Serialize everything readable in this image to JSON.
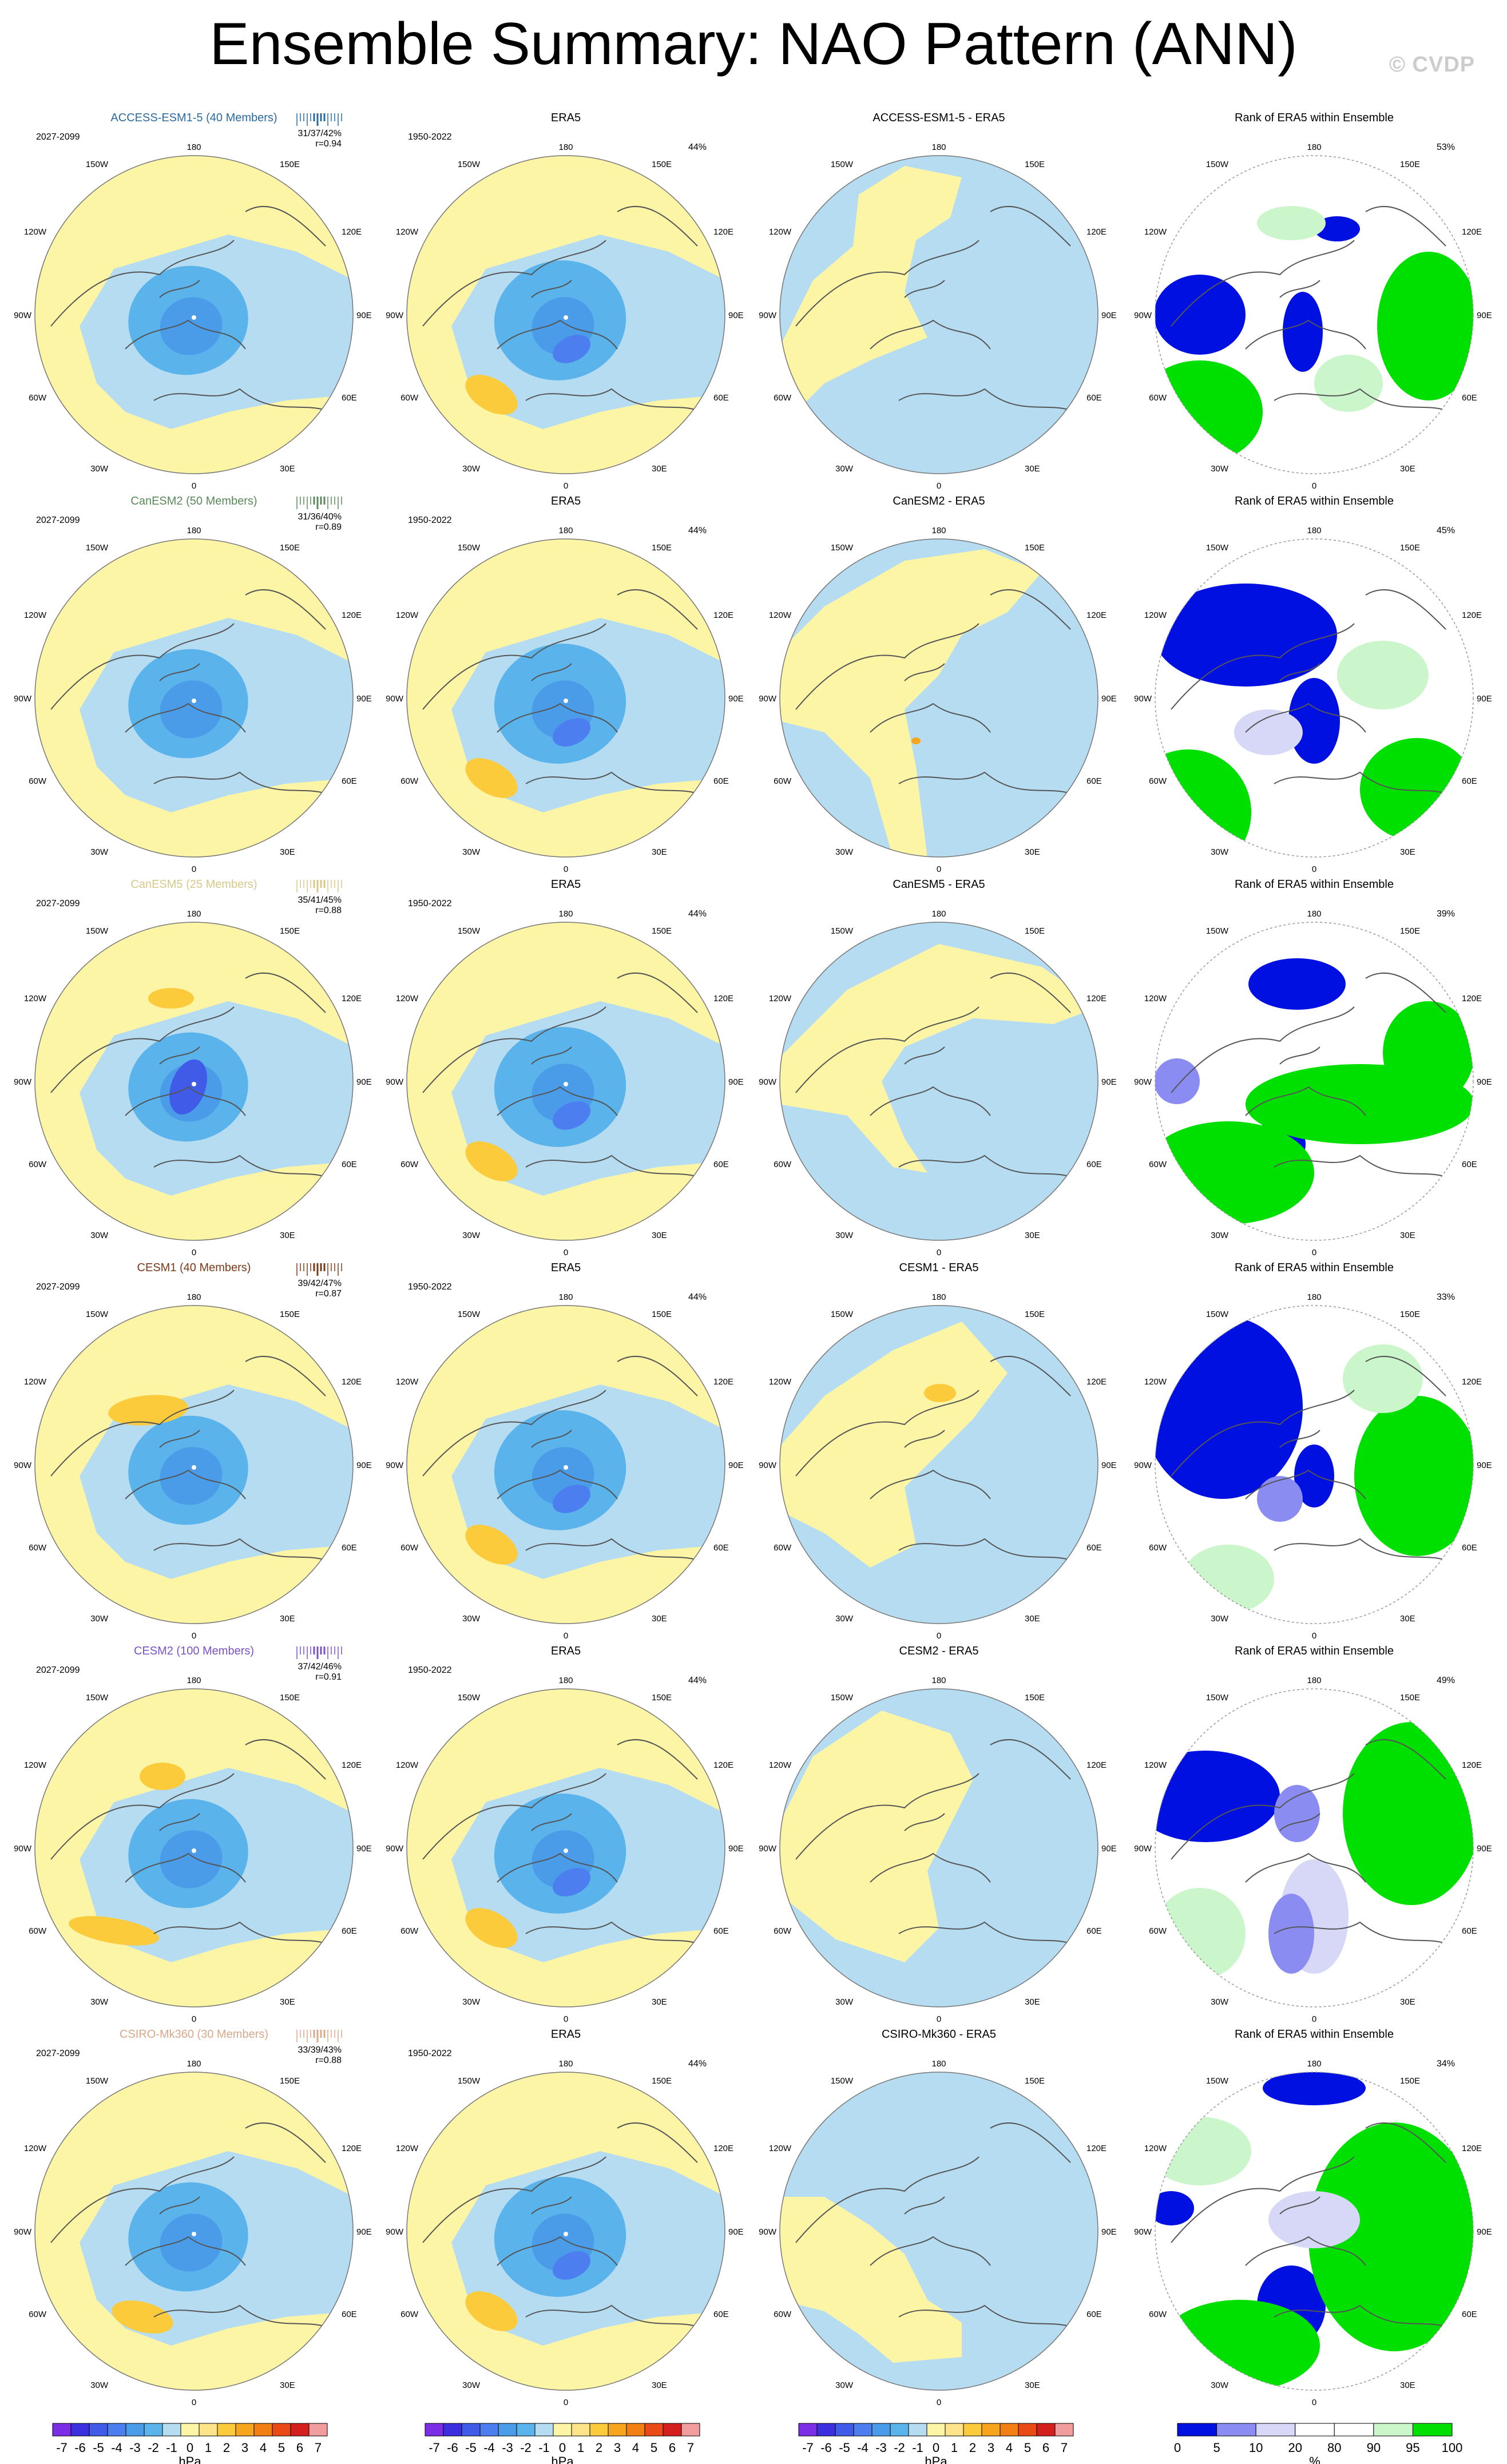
{
  "page": {
    "title": "Ensemble Summary: NAO Pattern (ANN)",
    "watermark": "© CVDP"
  },
  "axis_labels": {
    "top": "180",
    "bottom": "0",
    "upper_left": "150W",
    "upper_right": "150E",
    "mid_upper_left": "120W",
    "mid_upper_right": "120E",
    "left": "90W",
    "right": "90E",
    "mid_lower_left": "60W",
    "mid_lower_right": "60E",
    "lower_left": "30W",
    "lower_right": "30E"
  },
  "colors": {
    "land_outline": "#555555",
    "neg7": "#7b2ee6",
    "neg6": "#3b2fe0",
    "neg5": "#3f5be8",
    "neg4": "#4d7ef0",
    "neg3": "#4a9ce8",
    "neg2": "#5ab3ea",
    "neg1": "#b6dcf1",
    "pos0": "#fdf5a6",
    "pos1": "#fde38a",
    "pos2": "#fbcb3c",
    "pos3": "#f7a51e",
    "pos4": "#f27f14",
    "pos5": "#ea4a16",
    "pos6": "#d41f1f",
    "pos7": "#f29d9d",
    "rank_blue": "#0010e0",
    "rank_mid": "#8a8cf2",
    "rank_light": "#d7d7f7",
    "rank_white": "#ffffff",
    "rank_lgreen": "#cbf5cb",
    "rank_green": "#00e000",
    "model_access": "#2b6aa0",
    "model_canesm2": "#5a8a5a",
    "model_canesm5": "#d8c98a",
    "model_cesm1": "#7a3a1a",
    "model_cesm2": "#7a52c8",
    "model_csiro": "#d8a88a"
  },
  "column_titles": {
    "obs": "ERA5",
    "rank": "Rank of ERA5 within Ensemble"
  },
  "rows": [
    {
      "model_title": "ACCESS-ESM1-5 (40 Members)",
      "model_color": "model_access",
      "period": "2027-2099",
      "pct_stats": "31/37/42%",
      "corr": "r=0.94",
      "obs_period": "1950-2022",
      "obs_pct": "44%",
      "diff_title": "ACCESS-ESM1-5 - ERA5",
      "rank_pct": "53%"
    },
    {
      "model_title": "CanESM2 (50 Members)",
      "model_color": "model_canesm2",
      "period": "2027-2099",
      "pct_stats": "31/36/40%",
      "corr": "r=0.89",
      "obs_period": "1950-2022",
      "obs_pct": "44%",
      "diff_title": "CanESM2 - ERA5",
      "rank_pct": "45%"
    },
    {
      "model_title": "CanESM5 (25 Members)",
      "model_color": "model_canesm5",
      "period": "2027-2099",
      "pct_stats": "35/41/45%",
      "corr": "r=0.88",
      "obs_period": "1950-2022",
      "obs_pct": "44%",
      "diff_title": "CanESM5 - ERA5",
      "rank_pct": "39%"
    },
    {
      "model_title": "CESM1 (40 Members)",
      "model_color": "model_cesm1",
      "period": "2027-2099",
      "pct_stats": "39/42/47%",
      "corr": "r=0.87",
      "obs_period": "1950-2022",
      "obs_pct": "44%",
      "diff_title": "CESM1 - ERA5",
      "rank_pct": "33%"
    },
    {
      "model_title": "CESM2 (100 Members)",
      "model_color": "model_cesm2",
      "period": "2027-2099",
      "pct_stats": "37/42/46%",
      "corr": "r=0.91",
      "obs_period": "1950-2022",
      "obs_pct": "44%",
      "diff_title": "CESM2 - ERA5",
      "rank_pct": "49%"
    },
    {
      "model_title": "CSIRO-Mk360 (30 Members)",
      "model_color": "model_csiro",
      "period": "2027-2099",
      "pct_stats": "33/39/43%",
      "corr": "r=0.88",
      "obs_period": "1950-2022",
      "obs_pct": "44%",
      "diff_title": "CSIRO-Mk360 - ERA5",
      "rank_pct": "34%"
    }
  ],
  "colorbars": {
    "hpa": {
      "ticks": [
        "-7",
        "-6",
        "-5",
        "-4",
        "-3",
        "-2",
        "-1",
        "0",
        "1",
        "2",
        "3",
        "4",
        "5",
        "6",
        "7"
      ],
      "colors": [
        "neg7",
        "neg6",
        "neg5",
        "neg4",
        "neg3",
        "neg2",
        "neg1",
        "pos0",
        "pos1",
        "pos2",
        "pos3",
        "pos4",
        "pos5",
        "pos6",
        "pos7"
      ],
      "units": "hPa"
    },
    "rank": {
      "ticks": [
        "0",
        "5",
        "10",
        "20",
        "80",
        "90",
        "95",
        "100"
      ],
      "colors": [
        "rank_blue",
        "rank_mid",
        "rank_light",
        "rank_white",
        "rank_white",
        "rank_lgreen",
        "rank_green"
      ],
      "units": "%"
    }
  }
}
